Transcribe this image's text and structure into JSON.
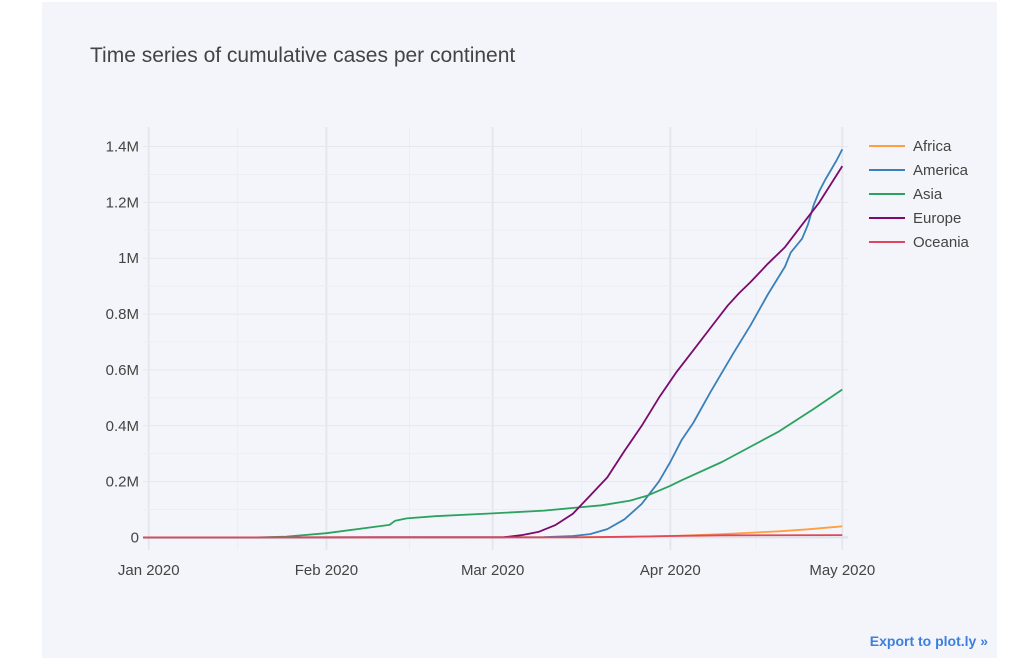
{
  "title": "Time series of cumulative cases per continent",
  "export_link": "Export to plot.ly »",
  "chart_data": {
    "type": "line",
    "title": "Time series of cumulative cases per continent",
    "xlabel": "",
    "ylabel": "",
    "x_range": [
      "2019-12-31",
      "2020-05-02"
    ],
    "ylim": [
      -45000,
      1470000
    ],
    "x_ticks": [
      {
        "date": "2020-01-01",
        "label": "Jan 2020"
      },
      {
        "date": "2020-02-01",
        "label": "Feb 2020"
      },
      {
        "date": "2020-03-01",
        "label": "Mar 2020"
      },
      {
        "date": "2020-04-01",
        "label": "Apr 2020"
      },
      {
        "date": "2020-05-01",
        "label": "May 2020"
      }
    ],
    "y_ticks": [
      {
        "value": 0,
        "label": "0"
      },
      {
        "value": 200000,
        "label": "0.2M"
      },
      {
        "value": 400000,
        "label": "0.4M"
      },
      {
        "value": 600000,
        "label": "0.6M"
      },
      {
        "value": 800000,
        "label": "0.8M"
      },
      {
        "value": 1000000,
        "label": "1M"
      },
      {
        "value": 1200000,
        "label": "1.2M"
      },
      {
        "value": 1400000,
        "label": "1.4M"
      }
    ],
    "grid": true,
    "legend_position": "top-right",
    "series": [
      {
        "name": "Africa",
        "color": "#ff9f40",
        "x": [
          "2019-12-31",
          "2020-03-20",
          "2020-04-01",
          "2020-04-10",
          "2020-04-20",
          "2020-04-25",
          "2020-05-01"
        ],
        "y": [
          0,
          1000,
          5000,
          12000,
          22000,
          29000,
          40000
        ]
      },
      {
        "name": "America",
        "color": "#3a80ba",
        "x": [
          "2019-12-31",
          "2020-03-10",
          "2020-03-15",
          "2020-03-18",
          "2020-03-21",
          "2020-03-24",
          "2020-03-27",
          "2020-03-30",
          "2020-04-01",
          "2020-04-03",
          "2020-04-05",
          "2020-04-08",
          "2020-04-12",
          "2020-04-15",
          "2020-04-18",
          "2020-04-21",
          "2020-04-22",
          "2020-04-24",
          "2020-04-25",
          "2020-04-26",
          "2020-04-27",
          "2020-04-28",
          "2020-04-30",
          "2020-05-01"
        ],
        "y": [
          0,
          1000,
          5000,
          12000,
          30000,
          65000,
          120000,
          200000,
          270000,
          350000,
          410000,
          520000,
          660000,
          760000,
          870000,
          970000,
          1020000,
          1070000,
          1120000,
          1190000,
          1240000,
          1280000,
          1350000,
          1390000
        ]
      },
      {
        "name": "Asia",
        "color": "#2ca25f",
        "x": [
          "2019-12-31",
          "2020-01-20",
          "2020-01-25",
          "2020-02-01",
          "2020-02-12",
          "2020-02-13",
          "2020-02-15",
          "2020-02-20",
          "2020-03-01",
          "2020-03-10",
          "2020-03-20",
          "2020-03-25",
          "2020-03-28",
          "2020-04-01",
          "2020-04-03",
          "2020-04-10",
          "2020-04-20",
          "2020-04-26",
          "2020-05-01"
        ],
        "y": [
          0,
          0,
          3000,
          15000,
          45000,
          60000,
          68000,
          76000,
          86000,
          96000,
          115000,
          132000,
          150000,
          185000,
          205000,
          270000,
          380000,
          460000,
          530000
        ]
      },
      {
        "name": "Europe",
        "color": "#7b0a6c",
        "x": [
          "2019-12-31",
          "2020-03-03",
          "2020-03-06",
          "2020-03-09",
          "2020-03-12",
          "2020-03-15",
          "2020-03-18",
          "2020-03-21",
          "2020-03-24",
          "2020-03-27",
          "2020-03-30",
          "2020-04-02",
          "2020-04-05",
          "2020-04-08",
          "2020-04-11",
          "2020-04-13",
          "2020-04-15",
          "2020-04-18",
          "2020-04-21",
          "2020-04-24",
          "2020-04-27",
          "2020-05-01"
        ],
        "y": [
          0,
          1000,
          8000,
          20000,
          45000,
          85000,
          150000,
          215000,
          310000,
          400000,
          500000,
          590000,
          670000,
          750000,
          830000,
          875000,
          915000,
          980000,
          1040000,
          1120000,
          1200000,
          1330000
        ]
      },
      {
        "name": "Oceania",
        "color": "#e0475a",
        "x": [
          "2019-12-31",
          "2020-03-15",
          "2020-03-25",
          "2020-04-01",
          "2020-04-10",
          "2020-05-01"
        ],
        "y": [
          0,
          300,
          2500,
          5000,
          7500,
          8500
        ]
      }
    ]
  }
}
